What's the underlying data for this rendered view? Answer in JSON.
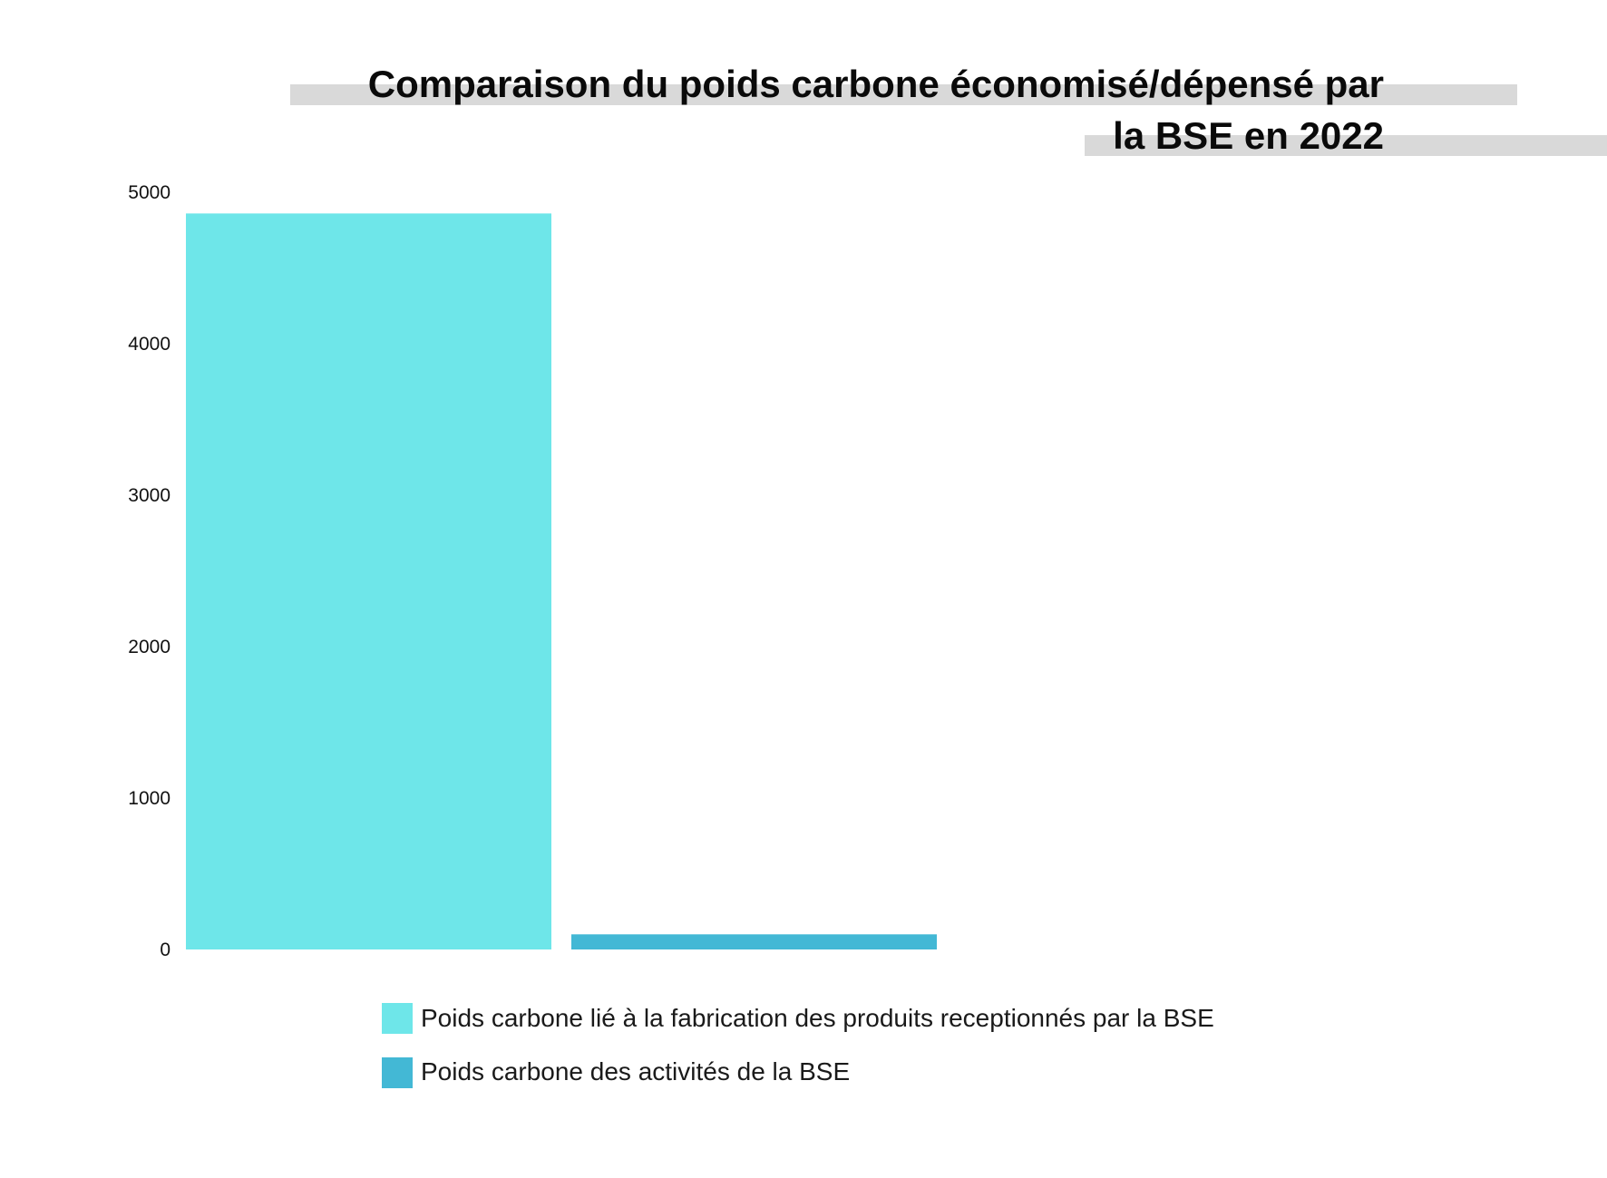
{
  "chart_data": {
    "type": "bar",
    "title_lines": [
      "Comparaison du poids carbone économisé/dépensé par",
      "la BSE en 2022"
    ],
    "xlabel": "",
    "ylabel": "",
    "ylim": [
      0,
      5000
    ],
    "yticks": [
      "0",
      "1000",
      "2000",
      "3000",
      "4000",
      "5000"
    ],
    "grid": false,
    "legend_position": "bottom",
    "series": [
      {
        "name": "Poids carbone lié à la fabrication des produits receptionnés par la BSE",
        "value": 4860,
        "color": "#6ee6e9"
      },
      {
        "name": "Poids carbone des activités de la BSE",
        "value": 100,
        "color": "#43b8d5"
      }
    ],
    "title_highlight_color": "#d9d9d9"
  }
}
